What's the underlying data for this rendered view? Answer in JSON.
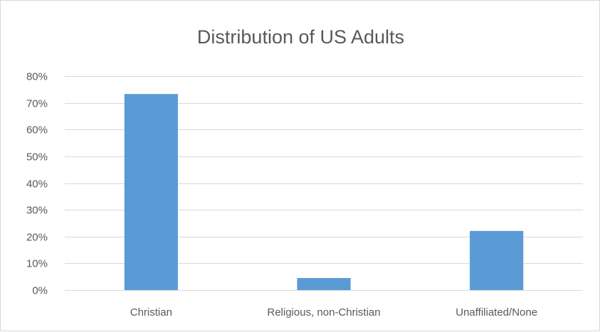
{
  "chart_data": {
    "type": "bar",
    "title": "Distribution of US Adults",
    "xlabel": "",
    "ylabel": "",
    "categories": [
      "Christian",
      "Religious, non-Christian",
      "Unaffiliated/None"
    ],
    "values": [
      0.733,
      0.045,
      0.221
    ],
    "value_format": "percent",
    "ylim": [
      0,
      0.8
    ],
    "y_ticks": [
      0,
      0.1,
      0.2,
      0.3,
      0.4,
      0.5,
      0.6,
      0.7,
      0.8
    ],
    "y_tick_labels": [
      "0%",
      "10%",
      "20%",
      "30%",
      "40%",
      "50%",
      "60%",
      "70%",
      "80%"
    ],
    "grid": "horizontal",
    "legend": "none",
    "bar_color": "#5b9bd5"
  }
}
